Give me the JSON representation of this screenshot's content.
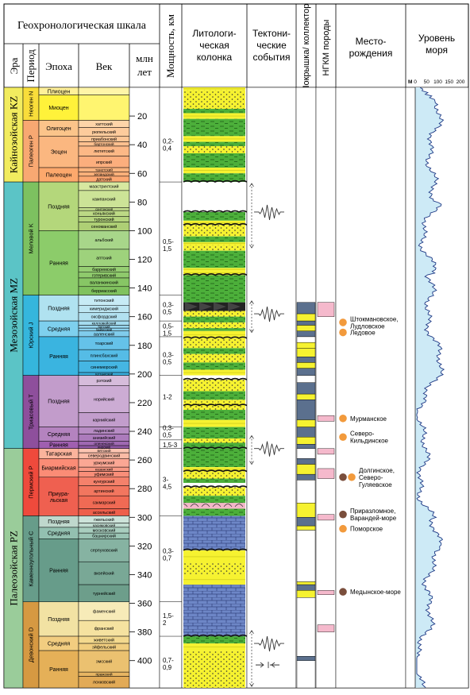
{
  "header": {
    "geo_scale": "Геохронологическая шкала",
    "era": "Эра",
    "period": "Период",
    "epoch": "Эпоха",
    "age": "Век",
    "mln_years": "млн лет",
    "thickness": "Мощность, км",
    "lithology": "Литологи-ческая колонка",
    "tectonic": "Тектони-ческие события",
    "seal": "Покрышка/ коллектор",
    "ngkm": "НГКМ породы",
    "fields": "Место-рождения",
    "sea_level": "Уровень моря",
    "sea_axis_label": "м",
    "sea_ticks": [
      "0",
      "50",
      "100",
      "150",
      "200"
    ]
  },
  "eras": [
    {
      "label": "Кайнозойская KZ",
      "from": 0,
      "to": 66,
      "color": "#f2ec5f"
    },
    {
      "label": "Мезозойская MZ",
      "from": 66,
      "to": 252,
      "color": "#5bc4c6"
    },
    {
      "label": "Палеозойская PZ",
      "from": 252,
      "to": 419,
      "color": "#9acc9a"
    }
  ],
  "periods": [
    {
      "label": "Неоген N",
      "from": 0,
      "to": 23,
      "color": "#f9dd3a"
    },
    {
      "label": "Палеоген P",
      "from": 23,
      "to": 66,
      "color": "#f8a872"
    },
    {
      "label": "Меловой K",
      "from": 66,
      "to": 145,
      "color": "#7dc160"
    },
    {
      "label": "Юрский J",
      "from": 145,
      "to": 201,
      "color": "#35b6dd"
    },
    {
      "label": "Триасовый T",
      "from": 201,
      "to": 252,
      "color": "#8e4f9c"
    },
    {
      "label": "Пермский P",
      "from": 252,
      "to": 299,
      "color": "#ef4a3c"
    },
    {
      "label": "Каменноугольный C",
      "from": 299,
      "to": 359,
      "color": "#679c8a"
    },
    {
      "label": "Девонский D",
      "from": 359,
      "to": 419,
      "color": "#d69942"
    }
  ],
  "epochs": [
    {
      "label": "Плиоцен",
      "from": 0,
      "to": 5.3,
      "color": "#fff099"
    },
    {
      "label": "Миоцен",
      "from": 5.3,
      "to": 23,
      "color": "#fff23a"
    },
    {
      "label": "Олигоцен",
      "from": 23,
      "to": 34,
      "color": "#fbc48a"
    },
    {
      "label": "Эоцен",
      "from": 34,
      "to": 56,
      "color": "#fbb780"
    },
    {
      "label": "Палеоцен",
      "from": 56,
      "to": 66,
      "color": "#fda86c"
    },
    {
      "label": "Поздняя",
      "from": 66,
      "to": 100,
      "color": "#b4d77b"
    },
    {
      "label": "Ранняя",
      "from": 100,
      "to": 145,
      "color": "#8ccc6a"
    },
    {
      "label": "Поздняя",
      "from": 145,
      "to": 163,
      "color": "#b0e2f0"
    },
    {
      "label": "Средняя",
      "from": 163,
      "to": 174,
      "color": "#7ed0ee"
    },
    {
      "label": "Ранняя",
      "from": 174,
      "to": 201,
      "color": "#3ab4e0"
    },
    {
      "label": "Поздняя",
      "from": 201,
      "to": 237,
      "color": "#c29ccb"
    },
    {
      "label": "Средняя",
      "from": 237,
      "to": 247,
      "color": "#b483bf"
    },
    {
      "label": "Ранняя",
      "from": 247,
      "to": 252,
      "color": "#a05fb0"
    },
    {
      "label": "Татарская",
      "from": 252,
      "to": 259,
      "color": "#fbb39c"
    },
    {
      "label": "Биармийская",
      "from": 259,
      "to": 272,
      "color": "#fb8c76"
    },
    {
      "label": "Приура-льская",
      "from": 272,
      "to": 299,
      "color": "#ef6050"
    },
    {
      "label": "Поздняя",
      "from": 299,
      "to": 307,
      "color": "#bfd8cd"
    },
    {
      "label": "Средняя",
      "from": 307,
      "to": 315,
      "color": "#93c0b0"
    },
    {
      "label": "Ранняя",
      "from": 315,
      "to": 359,
      "color": "#679c8a"
    },
    {
      "label": "Поздняя",
      "from": 359,
      "to": 383,
      "color": "#f2e2a3"
    },
    {
      "label": "Средняя",
      "from": 383,
      "to": 393,
      "color": "#f2cd80"
    },
    {
      "label": "Ранняя",
      "from": 393,
      "to": 419,
      "color": "#e5b058"
    }
  ],
  "ages": [
    {
      "label": "",
      "from": 0,
      "to": 5.3,
      "color": "#fff5a8"
    },
    {
      "label": "",
      "from": 5.3,
      "to": 23,
      "color": "#fff570"
    },
    {
      "label": "хаттский",
      "from": 23,
      "to": 28,
      "color": "#fdd4a8"
    },
    {
      "label": "рюпельский",
      "from": 28,
      "to": 34,
      "color": "#fdcb9c"
    },
    {
      "label": "приабонский",
      "from": 34,
      "to": 38,
      "color": "#fdc696"
    },
    {
      "label": "бартонский",
      "from": 38,
      "to": 41,
      "color": "#fdc08f"
    },
    {
      "label": "лютетский",
      "from": 41,
      "to": 48,
      "color": "#fcb886"
    },
    {
      "label": "ипрский",
      "from": 48,
      "to": 56,
      "color": "#fcae7d"
    },
    {
      "label": "танетский",
      "from": 56,
      "to": 59,
      "color": "#fcb47f"
    },
    {
      "label": "зеландский",
      "from": 59,
      "to": 62,
      "color": "#fdb07a"
    },
    {
      "label": "датский",
      "from": 62,
      "to": 66,
      "color": "#fda872"
    },
    {
      "label": "маастрихтский",
      "from": 66,
      "to": 72,
      "color": "#d7e8a0"
    },
    {
      "label": "кампанский",
      "from": 72,
      "to": 84,
      "color": "#cce397"
    },
    {
      "label": "сантонский",
      "from": 84,
      "to": 86,
      "color": "#c3dd8e"
    },
    {
      "label": "коньякский",
      "from": 86,
      "to": 90,
      "color": "#bcd985"
    },
    {
      "label": "туронский",
      "from": 90,
      "to": 94,
      "color": "#b4d47d"
    },
    {
      "label": "сеноманский",
      "from": 94,
      "to": 100,
      "color": "#aecf75"
    },
    {
      "label": "альбский",
      "from": 100,
      "to": 113,
      "color": "#a8d68a"
    },
    {
      "label": "аптский",
      "from": 113,
      "to": 125,
      "color": "#9ed27c"
    },
    {
      "label": "барремский",
      "from": 125,
      "to": 129,
      "color": "#96ce73"
    },
    {
      "label": "готеривский",
      "from": 129,
      "to": 133,
      "color": "#8fca6c"
    },
    {
      "label": "валанжинский",
      "from": 133,
      "to": 139,
      "color": "#87c665"
    },
    {
      "label": "берриасский",
      "from": 139,
      "to": 145,
      "color": "#80c25e"
    },
    {
      "label": "титонский",
      "from": 145,
      "to": 152,
      "color": "#c7ebf5"
    },
    {
      "label": "кимериджский",
      "from": 152,
      "to": 157,
      "color": "#bde6f2"
    },
    {
      "label": "оксфордский",
      "from": 157,
      "to": 163,
      "color": "#b2e1f0"
    },
    {
      "label": "келловейский",
      "from": 163,
      "to": 166,
      "color": "#a5dcef"
    },
    {
      "label": "батский",
      "from": 166,
      "to": 168,
      "color": "#98d6ee"
    },
    {
      "label": "байосский",
      "from": 168,
      "to": 170,
      "color": "#8cd1ed"
    },
    {
      "label": "ааленский",
      "from": 170,
      "to": 174,
      "color": "#80ccec"
    },
    {
      "label": "тоарский",
      "from": 174,
      "to": 183,
      "color": "#65c2e9"
    },
    {
      "label": "плинсбахский",
      "from": 183,
      "to": 191,
      "color": "#55bce6"
    },
    {
      "label": "синемюрский",
      "from": 191,
      "to": 199,
      "color": "#45b6e3"
    },
    {
      "label": "геттангский",
      "from": 199,
      "to": 201,
      "color": "#3ab0e0"
    },
    {
      "label": "рэтский",
      "from": 201,
      "to": 208,
      "color": "#d6bcdb"
    },
    {
      "label": "норийский",
      "from": 208,
      "to": 227,
      "color": "#ccacd4"
    },
    {
      "label": "карнийский",
      "from": 227,
      "to": 237,
      "color": "#c29dcc"
    },
    {
      "label": "ладинский",
      "from": 237,
      "to": 242,
      "color": "#b78cc4"
    },
    {
      "label": "анизийский",
      "from": 242,
      "to": 247,
      "color": "#ac7bbc"
    },
    {
      "label": "оленекский",
      "from": 247,
      "to": 250,
      "color": "#9f69b2"
    },
    {
      "label": "индский",
      "from": 250,
      "to": 252,
      "color": "#935aa9"
    },
    {
      "label": "вятский",
      "from": 252,
      "to": 255,
      "color": "#fcc5b2"
    },
    {
      "label": "северодвинский",
      "from": 255,
      "to": 259,
      "color": "#fbbba6"
    },
    {
      "label": "уржумский",
      "from": 259,
      "to": 265,
      "color": "#fba794"
    },
    {
      "label": "казанский",
      "from": 265,
      "to": 268,
      "color": "#fa9a86"
    },
    {
      "label": "уфимский",
      "from": 268,
      "to": 272,
      "color": "#f98e79"
    },
    {
      "label": "кунгурский",
      "from": 272,
      "to": 278,
      "color": "#f4816b"
    },
    {
      "label": "артинский",
      "from": 278,
      "to": 285,
      "color": "#f2765f"
    },
    {
      "label": "сакмарский",
      "from": 285,
      "to": 294,
      "color": "#f06a54"
    },
    {
      "label": "ассельский",
      "from": 294,
      "to": 299,
      "color": "#ee5f4b"
    },
    {
      "label": "гжельский",
      "from": 299,
      "to": 304,
      "color": "#cde3da"
    },
    {
      "label": "касимовский",
      "from": 304,
      "to": 307,
      "color": "#c0dbd0"
    },
    {
      "label": "московский",
      "from": 307,
      "to": 311,
      "color": "#a9cebf"
    },
    {
      "label": "башкирский",
      "from": 311,
      "to": 315,
      "color": "#9ac4b4"
    },
    {
      "label": "серпуховский",
      "from": 315,
      "to": 331,
      "color": "#86b3a2"
    },
    {
      "label": "визейский",
      "from": 331,
      "to": 347,
      "color": "#79a896"
    },
    {
      "label": "турнейский",
      "from": 347,
      "to": 359,
      "color": "#6d9e8b"
    },
    {
      "label": "фаменский",
      "from": 359,
      "to": 372,
      "color": "#f7ebb8"
    },
    {
      "label": "франский",
      "from": 372,
      "to": 383,
      "color": "#f5e2a0"
    },
    {
      "label": "живетский",
      "from": 383,
      "to": 388,
      "color": "#f3d98e"
    },
    {
      "label": "эйфельский",
      "from": 388,
      "to": 393,
      "color": "#f1ce7f"
    },
    {
      "label": "эмсский",
      "from": 393,
      "to": 408,
      "color": "#ebc170"
    },
    {
      "label": "пражский",
      "from": 408,
      "to": 411,
      "color": "#e7b562"
    },
    {
      "label": "лохковский",
      "from": 411,
      "to": 419,
      "color": "#e2aa56"
    }
  ],
  "epoch_short_labels": {
    "pliocene": "Плиоцен"
  },
  "time_ticks": [
    "20",
    "40",
    "60",
    "80",
    "100",
    "120",
    "140",
    "160",
    "180",
    "200",
    "220",
    "240",
    "260",
    "280",
    "300",
    "320",
    "340",
    "360",
    "380",
    "400"
  ],
  "thickness": [
    {
      "label": "0,2-\n0,4",
      "at": 40
    },
    {
      "label": "0,5-\n1,5",
      "at": 110
    },
    {
      "label": "0,3-\n0,5",
      "at": 154
    },
    {
      "label": "0,5-\n1,5",
      "at": 169
    },
    {
      "label": "0,3-\n0,5",
      "at": 189
    },
    {
      "label": "1-2",
      "at": 216
    },
    {
      "label": "0,3-\n0,5",
      "at": 240
    },
    {
      "label": "1,5-3",
      "at": 249.5
    },
    {
      "label": "3-\n4,5",
      "at": 276
    },
    {
      "label": "0,3-\n0,7",
      "at": 326
    },
    {
      "label": "1,5-\n2",
      "at": 371
    },
    {
      "label": "0,7-\n0,9",
      "at": 402
    }
  ],
  "fields": [
    {
      "label": "Штокмановское,\nЛудловское",
      "at": 164,
      "dots": [
        "#f29a3c"
      ]
    },
    {
      "label": "Ледовое",
      "at": 171,
      "dots": [
        "#f29a3c"
      ]
    },
    {
      "label": "Мурманское",
      "at": 231,
      "dots": [
        "#f29a3c"
      ]
    },
    {
      "label": "Северо-\nКильдинское",
      "at": 244,
      "dots": [
        "#f29a3c"
      ]
    },
    {
      "label": "Долгинское,\nСеверо-\nГуляевское",
      "at": 272,
      "dots": [
        "#7a4e3c",
        "#f29a3c"
      ]
    },
    {
      "label": "Приразломное,\nВарандей-море",
      "at": 298,
      "dots": [
        "#7a4e3c"
      ]
    },
    {
      "label": "Поморское",
      "at": 308,
      "dots": [
        "#f29a3c"
      ]
    },
    {
      "label": "Медынское-море",
      "at": 352,
      "dots": [
        "#7a4e3c"
      ]
    }
  ],
  "colors": {
    "sand_yellow": "#f6f230",
    "shale_green": "#4caf3a",
    "limestone_blue": "#6d86c6",
    "salt_pink": "#f4b6c8",
    "seal_slate": "#5b708e",
    "ngkm_pink": "#f5b9cc",
    "sea_fill": "#cdeaf6",
    "sea_line": "#1f3a86"
  }
}
